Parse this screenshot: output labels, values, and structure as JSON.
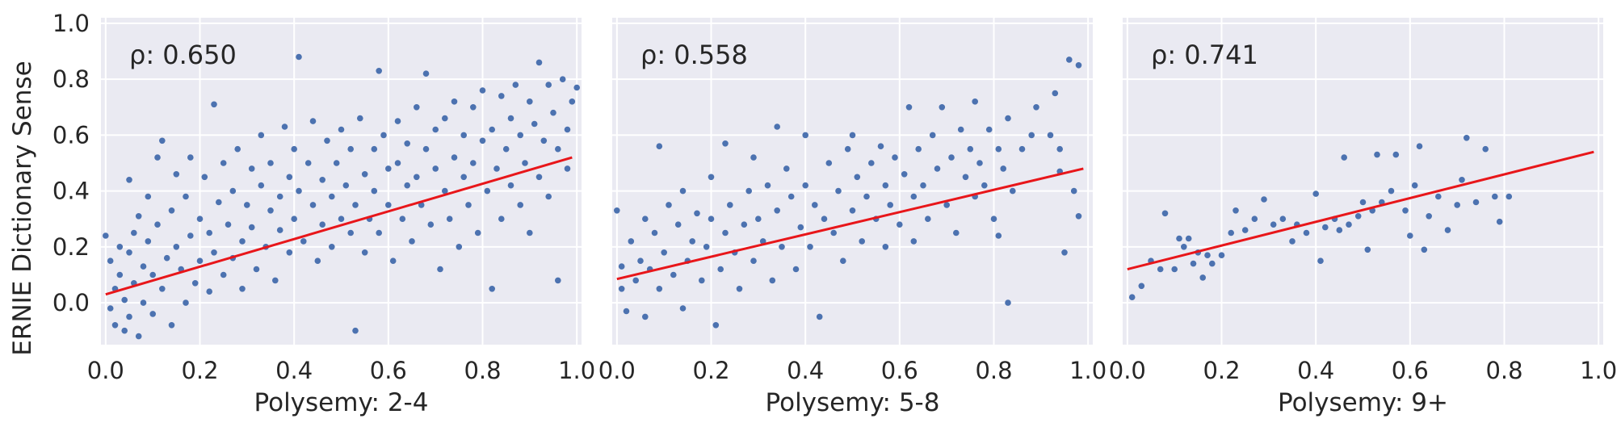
{
  "figure": {
    "ylabel": "ERNIE Dictionary Sense",
    "colors": {
      "panel_bg": "#EAEAF2",
      "grid": "#FFFFFF",
      "points": "#4C72B0",
      "fit_line": "#E8161A",
      "text": "#262626"
    }
  },
  "chart_data": [
    {
      "type": "scatter",
      "xlabel": "Polysemy: 2-4",
      "ylabel": "ERNIE Dictionary Sense",
      "annotation": "ρ: 0.650",
      "xlim": [
        -0.01,
        1.01
      ],
      "ylim": [
        -0.15,
        1.02
      ],
      "xticks": [
        "0.0",
        "0.2",
        "0.4",
        "0.6",
        "0.8",
        "1.0"
      ],
      "yticks": [
        "0.0",
        "0.2",
        "0.4",
        "0.6",
        "0.8",
        "1.0"
      ],
      "grid": true,
      "fit_line": {
        "x": [
          0.0,
          0.99
        ],
        "y": [
          0.03,
          0.52
        ]
      },
      "points": [
        [
          0.0,
          0.24
        ],
        [
          0.01,
          -0.02
        ],
        [
          0.01,
          0.15
        ],
        [
          0.02,
          0.05
        ],
        [
          0.02,
          -0.08
        ],
        [
          0.03,
          0.2
        ],
        [
          0.03,
          0.1
        ],
        [
          0.04,
          -0.1
        ],
        [
          0.04,
          0.01
        ],
        [
          0.05,
          0.44
        ],
        [
          0.05,
          0.18
        ],
        [
          0.05,
          -0.05
        ],
        [
          0.06,
          0.07
        ],
        [
          0.06,
          0.25
        ],
        [
          0.07,
          0.31
        ],
        [
          0.07,
          -0.12
        ],
        [
          0.08,
          0.13
        ],
        [
          0.08,
          0.0
        ],
        [
          0.09,
          0.22
        ],
        [
          0.09,
          0.38
        ],
        [
          0.1,
          -0.04
        ],
        [
          0.1,
          0.1
        ],
        [
          0.11,
          0.28
        ],
        [
          0.11,
          0.52
        ],
        [
          0.12,
          0.58
        ],
        [
          0.12,
          0.05
        ],
        [
          0.13,
          0.16
        ],
        [
          0.14,
          0.33
        ],
        [
          0.14,
          -0.08
        ],
        [
          0.15,
          0.46
        ],
        [
          0.15,
          0.2
        ],
        [
          0.16,
          0.12
        ],
        [
          0.17,
          0.0
        ],
        [
          0.17,
          0.38
        ],
        [
          0.18,
          0.52
        ],
        [
          0.18,
          0.24
        ],
        [
          0.19,
          0.07
        ],
        [
          0.2,
          0.3
        ],
        [
          0.2,
          0.15
        ],
        [
          0.21,
          0.45
        ],
        [
          0.22,
          0.04
        ],
        [
          0.22,
          0.25
        ],
        [
          0.23,
          0.71
        ],
        [
          0.23,
          0.18
        ],
        [
          0.24,
          0.36
        ],
        [
          0.25,
          0.1
        ],
        [
          0.25,
          0.5
        ],
        [
          0.26,
          0.28
        ],
        [
          0.27,
          0.4
        ],
        [
          0.27,
          0.16
        ],
        [
          0.28,
          0.55
        ],
        [
          0.29,
          0.22
        ],
        [
          0.29,
          0.05
        ],
        [
          0.3,
          0.35
        ],
        [
          0.31,
          0.48
        ],
        [
          0.31,
          0.27
        ],
        [
          0.32,
          0.12
        ],
        [
          0.33,
          0.42
        ],
        [
          0.33,
          0.6
        ],
        [
          0.34,
          0.2
        ],
        [
          0.35,
          0.33
        ],
        [
          0.35,
          0.5
        ],
        [
          0.36,
          0.08
        ],
        [
          0.37,
          0.38
        ],
        [
          0.37,
          0.26
        ],
        [
          0.38,
          0.63
        ],
        [
          0.39,
          0.45
        ],
        [
          0.39,
          0.18
        ],
        [
          0.4,
          0.3
        ],
        [
          0.4,
          0.55
        ],
        [
          0.41,
          0.4
        ],
        [
          0.41,
          0.88
        ],
        [
          0.42,
          0.22
        ],
        [
          0.43,
          0.5
        ],
        [
          0.44,
          0.35
        ],
        [
          0.44,
          0.65
        ],
        [
          0.45,
          0.15
        ],
        [
          0.46,
          0.44
        ],
        [
          0.46,
          0.28
        ],
        [
          0.47,
          0.58
        ],
        [
          0.48,
          0.38
        ],
        [
          0.48,
          0.2
        ],
        [
          0.49,
          0.5
        ],
        [
          0.5,
          0.3
        ],
        [
          0.5,
          0.62
        ],
        [
          0.51,
          0.42
        ],
        [
          0.52,
          0.25
        ],
        [
          0.52,
          0.55
        ],
        [
          0.53,
          -0.1
        ],
        [
          0.53,
          0.35
        ],
        [
          0.54,
          0.66
        ],
        [
          0.55,
          0.46
        ],
        [
          0.55,
          0.18
        ],
        [
          0.56,
          0.3
        ],
        [
          0.57,
          0.55
        ],
        [
          0.57,
          0.4
        ],
        [
          0.58,
          0.83
        ],
        [
          0.58,
          0.25
        ],
        [
          0.59,
          0.6
        ],
        [
          0.6,
          0.35
        ],
        [
          0.6,
          0.48
        ],
        [
          0.61,
          0.15
        ],
        [
          0.62,
          0.5
        ],
        [
          0.62,
          0.65
        ],
        [
          0.63,
          0.3
        ],
        [
          0.64,
          0.42
        ],
        [
          0.64,
          0.57
        ],
        [
          0.65,
          0.22
        ],
        [
          0.66,
          0.45
        ],
        [
          0.66,
          0.7
        ],
        [
          0.67,
          0.35
        ],
        [
          0.68,
          0.82
        ],
        [
          0.68,
          0.55
        ],
        [
          0.69,
          0.28
        ],
        [
          0.7,
          0.48
        ],
        [
          0.7,
          0.62
        ],
        [
          0.71,
          0.12
        ],
        [
          0.72,
          0.4
        ],
        [
          0.72,
          0.66
        ],
        [
          0.73,
          0.3
        ],
        [
          0.74,
          0.52
        ],
        [
          0.74,
          0.72
        ],
        [
          0.75,
          0.2
        ],
        [
          0.76,
          0.45
        ],
        [
          0.76,
          0.6
        ],
        [
          0.77,
          0.35
        ],
        [
          0.78,
          0.7
        ],
        [
          0.78,
          0.5
        ],
        [
          0.79,
          0.25
        ],
        [
          0.8,
          0.58
        ],
        [
          0.8,
          0.76
        ],
        [
          0.81,
          0.4
        ],
        [
          0.82,
          0.05
        ],
        [
          0.82,
          0.62
        ],
        [
          0.83,
          0.48
        ],
        [
          0.84,
          0.74
        ],
        [
          0.84,
          0.3
        ],
        [
          0.85,
          0.55
        ],
        [
          0.86,
          0.66
        ],
        [
          0.86,
          0.42
        ],
        [
          0.87,
          0.78
        ],
        [
          0.88,
          0.35
        ],
        [
          0.88,
          0.6
        ],
        [
          0.89,
          0.5
        ],
        [
          0.9,
          0.72
        ],
        [
          0.9,
          0.25
        ],
        [
          0.91,
          0.64
        ],
        [
          0.92,
          0.86
        ],
        [
          0.92,
          0.45
        ],
        [
          0.93,
          0.58
        ],
        [
          0.94,
          0.78
        ],
        [
          0.94,
          0.38
        ],
        [
          0.95,
          0.68
        ],
        [
          0.96,
          0.55
        ],
        [
          0.96,
          0.08
        ],
        [
          0.97,
          0.8
        ],
        [
          0.98,
          0.62
        ],
        [
          0.98,
          0.48
        ],
        [
          0.99,
          0.72
        ],
        [
          1.0,
          0.77
        ]
      ]
    },
    {
      "type": "scatter",
      "xlabel": "Polysemy: 5-8",
      "annotation": "ρ: 0.558",
      "xlim": [
        -0.01,
        1.01
      ],
      "ylim": [
        -0.15,
        1.02
      ],
      "xticks": [
        "0.0",
        "0.2",
        "0.4",
        "0.6",
        "0.8",
        "1.0"
      ],
      "grid": true,
      "fit_line": {
        "x": [
          0.0,
          0.99
        ],
        "y": [
          0.085,
          0.48
        ]
      },
      "points": [
        [
          0.0,
          0.33
        ],
        [
          0.01,
          0.05
        ],
        [
          0.01,
          0.13
        ],
        [
          0.02,
          -0.03
        ],
        [
          0.03,
          0.22
        ],
        [
          0.04,
          0.08
        ],
        [
          0.05,
          0.15
        ],
        [
          0.06,
          0.3
        ],
        [
          0.06,
          -0.05
        ],
        [
          0.07,
          0.12
        ],
        [
          0.08,
          0.25
        ],
        [
          0.09,
          0.56
        ],
        [
          0.09,
          0.05
        ],
        [
          0.1,
          0.18
        ],
        [
          0.11,
          0.35
        ],
        [
          0.12,
          0.1
        ],
        [
          0.13,
          0.28
        ],
        [
          0.14,
          -0.02
        ],
        [
          0.14,
          0.4
        ],
        [
          0.15,
          0.15
        ],
        [
          0.16,
          0.22
        ],
        [
          0.17,
          0.32
        ],
        [
          0.18,
          0.08
        ],
        [
          0.19,
          0.2
        ],
        [
          0.2,
          0.45
        ],
        [
          0.2,
          0.3
        ],
        [
          0.21,
          -0.08
        ],
        [
          0.22,
          0.12
        ],
        [
          0.23,
          0.57
        ],
        [
          0.23,
          0.25
        ],
        [
          0.24,
          0.35
        ],
        [
          0.25,
          0.18
        ],
        [
          0.26,
          0.05
        ],
        [
          0.27,
          0.28
        ],
        [
          0.28,
          0.4
        ],
        [
          0.29,
          0.15
        ],
        [
          0.29,
          0.52
        ],
        [
          0.3,
          0.3
        ],
        [
          0.31,
          0.22
        ],
        [
          0.32,
          0.42
        ],
        [
          0.33,
          0.08
        ],
        [
          0.34,
          0.63
        ],
        [
          0.34,
          0.33
        ],
        [
          0.35,
          0.2
        ],
        [
          0.36,
          0.48
        ],
        [
          0.37,
          0.38
        ],
        [
          0.38,
          0.12
        ],
        [
          0.39,
          0.27
        ],
        [
          0.4,
          0.6
        ],
        [
          0.4,
          0.42
        ],
        [
          0.41,
          0.2
        ],
        [
          0.42,
          0.35
        ],
        [
          0.43,
          -0.05
        ],
        [
          0.44,
          0.3
        ],
        [
          0.45,
          0.5
        ],
        [
          0.46,
          0.25
        ],
        [
          0.47,
          0.4
        ],
        [
          0.48,
          0.15
        ],
        [
          0.49,
          0.55
        ],
        [
          0.5,
          0.33
        ],
        [
          0.5,
          0.6
        ],
        [
          0.51,
          0.45
        ],
        [
          0.52,
          0.22
        ],
        [
          0.53,
          0.38
        ],
        [
          0.54,
          0.5
        ],
        [
          0.55,
          0.3
        ],
        [
          0.56,
          0.56
        ],
        [
          0.57,
          0.2
        ],
        [
          0.57,
          0.42
        ],
        [
          0.58,
          0.35
        ],
        [
          0.59,
          0.52
        ],
        [
          0.6,
          0.28
        ],
        [
          0.61,
          0.46
        ],
        [
          0.62,
          0.7
        ],
        [
          0.63,
          0.38
        ],
        [
          0.63,
          0.22
        ],
        [
          0.64,
          0.55
        ],
        [
          0.65,
          0.42
        ],
        [
          0.66,
          0.3
        ],
        [
          0.67,
          0.6
        ],
        [
          0.68,
          0.48
        ],
        [
          0.69,
          0.7
        ],
        [
          0.7,
          0.35
        ],
        [
          0.71,
          0.52
        ],
        [
          0.72,
          0.25
        ],
        [
          0.73,
          0.62
        ],
        [
          0.74,
          0.45
        ],
        [
          0.75,
          0.55
        ],
        [
          0.76,
          0.38
        ],
        [
          0.76,
          0.72
        ],
        [
          0.77,
          0.5
        ],
        [
          0.78,
          0.42
        ],
        [
          0.79,
          0.62
        ],
        [
          0.8,
          0.3
        ],
        [
          0.81,
          0.55
        ],
        [
          0.81,
          0.24
        ],
        [
          0.82,
          0.48
        ],
        [
          0.83,
          0.0
        ],
        [
          0.83,
          0.66
        ],
        [
          0.84,
          0.4
        ],
        [
          0.86,
          0.55
        ],
        [
          0.88,
          0.6
        ],
        [
          0.89,
          0.7
        ],
        [
          0.92,
          0.6
        ],
        [
          0.93,
          0.75
        ],
        [
          0.94,
          0.55
        ],
        [
          0.94,
          0.47
        ],
        [
          0.95,
          0.18
        ],
        [
          0.96,
          0.87
        ],
        [
          0.97,
          0.4
        ],
        [
          0.98,
          0.85
        ],
        [
          0.98,
          0.31
        ]
      ]
    },
    {
      "type": "scatter",
      "xlabel": "Polysemy: 9+",
      "annotation": "ρ: 0.741",
      "xlim": [
        -0.01,
        1.01
      ],
      "ylim": [
        -0.15,
        1.02
      ],
      "xticks": [
        "0.0",
        "0.2",
        "0.4",
        "0.6",
        "0.8",
        "1.0"
      ],
      "grid": true,
      "fit_line": {
        "x": [
          0.0,
          0.99
        ],
        "y": [
          0.12,
          0.54
        ]
      },
      "points": [
        [
          0.01,
          0.02
        ],
        [
          0.03,
          0.06
        ],
        [
          0.05,
          0.15
        ],
        [
          0.07,
          0.12
        ],
        [
          0.08,
          0.32
        ],
        [
          0.1,
          0.12
        ],
        [
          0.11,
          0.23
        ],
        [
          0.12,
          0.2
        ],
        [
          0.13,
          0.23
        ],
        [
          0.14,
          0.14
        ],
        [
          0.15,
          0.18
        ],
        [
          0.16,
          0.09
        ],
        [
          0.17,
          0.17
        ],
        [
          0.18,
          0.14
        ],
        [
          0.2,
          0.17
        ],
        [
          0.22,
          0.25
        ],
        [
          0.23,
          0.33
        ],
        [
          0.25,
          0.26
        ],
        [
          0.27,
          0.3
        ],
        [
          0.29,
          0.37
        ],
        [
          0.31,
          0.28
        ],
        [
          0.33,
          0.3
        ],
        [
          0.35,
          0.22
        ],
        [
          0.36,
          0.28
        ],
        [
          0.38,
          0.25
        ],
        [
          0.4,
          0.39
        ],
        [
          0.41,
          0.15
        ],
        [
          0.42,
          0.27
        ],
        [
          0.44,
          0.3
        ],
        [
          0.45,
          0.26
        ],
        [
          0.46,
          0.52
        ],
        [
          0.47,
          0.28
        ],
        [
          0.49,
          0.31
        ],
        [
          0.5,
          0.36
        ],
        [
          0.51,
          0.19
        ],
        [
          0.52,
          0.33
        ],
        [
          0.53,
          0.53
        ],
        [
          0.54,
          0.36
        ],
        [
          0.56,
          0.4
        ],
        [
          0.57,
          0.53
        ],
        [
          0.59,
          0.33
        ],
        [
          0.6,
          0.24
        ],
        [
          0.61,
          0.42
        ],
        [
          0.62,
          0.56
        ],
        [
          0.63,
          0.19
        ],
        [
          0.64,
          0.31
        ],
        [
          0.66,
          0.38
        ],
        [
          0.68,
          0.26
        ],
        [
          0.7,
          0.35
        ],
        [
          0.71,
          0.44
        ],
        [
          0.72,
          0.59
        ],
        [
          0.74,
          0.36
        ],
        [
          0.76,
          0.55
        ],
        [
          0.78,
          0.38
        ],
        [
          0.79,
          0.29
        ],
        [
          0.81,
          0.38
        ]
      ]
    }
  ]
}
